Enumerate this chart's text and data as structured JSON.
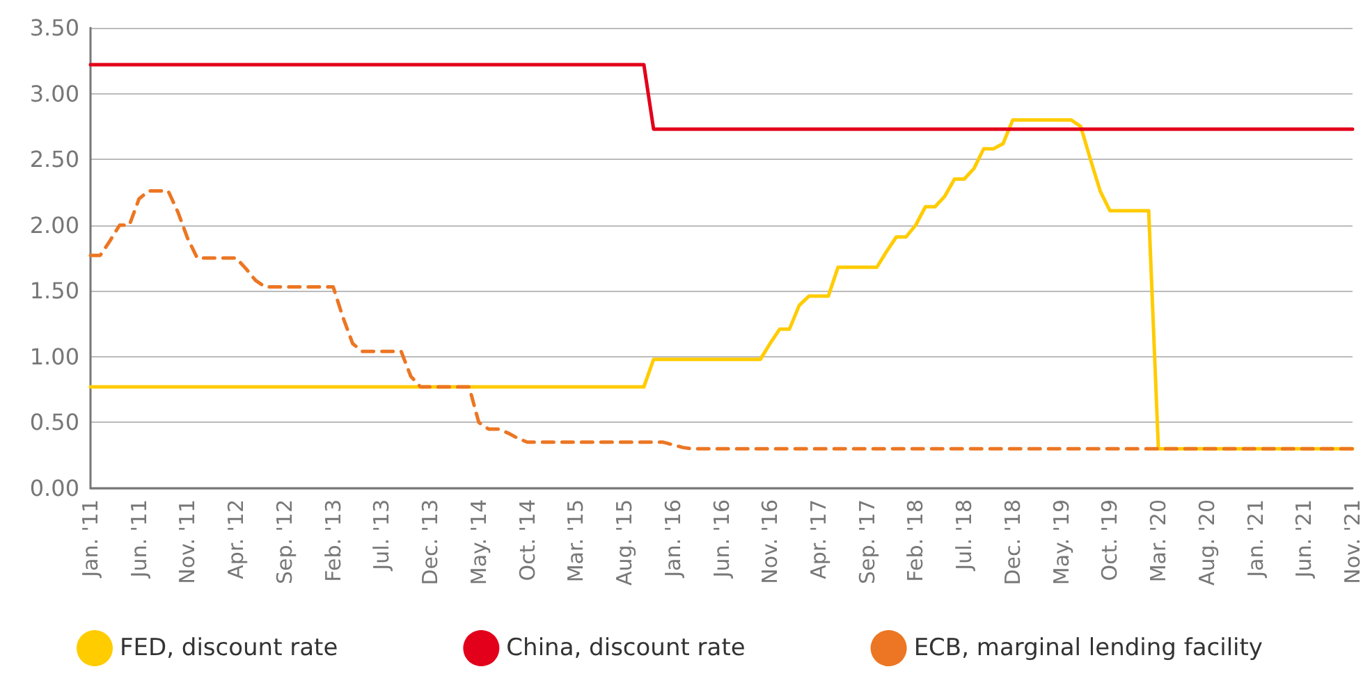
{
  "chart_data": {
    "type": "line",
    "categories": [
      "Jan. '11",
      null,
      null,
      null,
      null,
      "Jun. '11",
      null,
      null,
      null,
      null,
      "Nov. '11",
      null,
      null,
      null,
      null,
      "Apr. '12",
      null,
      null,
      null,
      null,
      "Sep. '12",
      null,
      null,
      null,
      null,
      "Feb. '13",
      null,
      null,
      null,
      null,
      "Jul. '13",
      null,
      null,
      null,
      null,
      "Dec. '13",
      null,
      null,
      null,
      null,
      "May. '14",
      null,
      null,
      null,
      null,
      "Oct. '14",
      null,
      null,
      null,
      null,
      "Mar. '15",
      null,
      null,
      null,
      null,
      "Aug. '15",
      null,
      null,
      null,
      null,
      "Jan. '16",
      null,
      null,
      null,
      null,
      "Jun. '16",
      null,
      null,
      null,
      null,
      "Nov. '16",
      null,
      null,
      null,
      null,
      "Apr. '17",
      null,
      null,
      null,
      null,
      "Sep. '17",
      null,
      null,
      null,
      null,
      "Feb. '18",
      null,
      null,
      null,
      null,
      "Jul. '18",
      null,
      null,
      null,
      null,
      "Dec. '18",
      null,
      null,
      null,
      null,
      "May. '19",
      null,
      null,
      null,
      null,
      "Oct. '19",
      null,
      null,
      null,
      null,
      "Mar. '20",
      null,
      null,
      null,
      null,
      "Aug. '20",
      null,
      null,
      null,
      null,
      "Jan. '21",
      null,
      null,
      null,
      null,
      "Jun. '21",
      null,
      null,
      null,
      null,
      "Nov. '21"
    ],
    "series": [
      {
        "name": "FED, discount rate",
        "color": "#ffcc00",
        "line_style": "solid",
        "values": [
          0.77,
          0.77,
          0.77,
          0.77,
          0.77,
          0.77,
          0.77,
          0.77,
          0.77,
          0.77,
          0.77,
          0.77,
          0.77,
          0.77,
          0.77,
          0.77,
          0.77,
          0.77,
          0.77,
          0.77,
          0.77,
          0.77,
          0.77,
          0.77,
          0.77,
          0.77,
          0.77,
          0.77,
          0.77,
          0.77,
          0.77,
          0.77,
          0.77,
          0.77,
          0.77,
          0.77,
          0.77,
          0.77,
          0.77,
          0.77,
          0.77,
          0.77,
          0.77,
          0.77,
          0.77,
          0.77,
          0.77,
          0.77,
          0.77,
          0.77,
          0.77,
          0.77,
          0.77,
          0.77,
          0.77,
          0.77,
          0.77,
          0.77,
          0.98,
          0.98,
          0.98,
          0.98,
          0.98,
          0.98,
          0.98,
          0.98,
          0.98,
          0.98,
          0.98,
          0.98,
          1.1,
          1.21,
          1.21,
          1.39,
          1.46,
          1.46,
          1.46,
          1.68,
          1.68,
          1.68,
          1.68,
          1.68,
          1.8,
          1.91,
          1.91,
          2.0,
          2.14,
          2.14,
          2.22,
          2.35,
          2.35,
          2.43,
          2.58,
          2.58,
          2.62,
          2.8,
          2.8,
          2.8,
          2.8,
          2.8,
          2.8,
          2.8,
          2.75,
          2.5,
          2.26,
          2.11,
          2.11,
          2.11,
          2.11,
          2.11,
          0.3,
          0.3,
          0.3,
          0.3,
          0.3,
          0.3,
          0.3,
          0.3,
          0.3,
          0.3,
          0.3,
          0.3,
          0.3,
          0.3,
          0.3,
          0.3,
          0.3,
          0.3,
          0.3,
          0.3,
          0.3
        ]
      },
      {
        "name": "China, discount rate",
        "color": "#e2001a",
        "line_style": "solid",
        "values": [
          3.22,
          3.22,
          3.22,
          3.22,
          3.22,
          3.22,
          3.22,
          3.22,
          3.22,
          3.22,
          3.22,
          3.22,
          3.22,
          3.22,
          3.22,
          3.22,
          3.22,
          3.22,
          3.22,
          3.22,
          3.22,
          3.22,
          3.22,
          3.22,
          3.22,
          3.22,
          3.22,
          3.22,
          3.22,
          3.22,
          3.22,
          3.22,
          3.22,
          3.22,
          3.22,
          3.22,
          3.22,
          3.22,
          3.22,
          3.22,
          3.22,
          3.22,
          3.22,
          3.22,
          3.22,
          3.22,
          3.22,
          3.22,
          3.22,
          3.22,
          3.22,
          3.22,
          3.22,
          3.22,
          3.22,
          3.22,
          3.22,
          3.22,
          2.73,
          2.73,
          2.73,
          2.73,
          2.73,
          2.73,
          2.73,
          2.73,
          2.73,
          2.73,
          2.73,
          2.73,
          2.73,
          2.73,
          2.73,
          2.73,
          2.73,
          2.73,
          2.73,
          2.73,
          2.73,
          2.73,
          2.73,
          2.73,
          2.73,
          2.73,
          2.73,
          2.73,
          2.73,
          2.73,
          2.73,
          2.73,
          2.73,
          2.73,
          2.73,
          2.73,
          2.73,
          2.73,
          2.73,
          2.73,
          2.73,
          2.73,
          2.73,
          2.73,
          2.73,
          2.73,
          2.73,
          2.73,
          2.73,
          2.73,
          2.73,
          2.73,
          2.73,
          2.73,
          2.73,
          2.73,
          2.73,
          2.73,
          2.73,
          2.73,
          2.73,
          2.73,
          2.73,
          2.73,
          2.73,
          2.73,
          2.73,
          2.73,
          2.73,
          2.73,
          2.73,
          2.73,
          2.73
        ]
      },
      {
        "name": "ECB, marginal lending facility",
        "color": "#ec7623",
        "line_style": "dashed",
        "values": [
          1.77,
          1.77,
          1.88,
          2.0,
          2.0,
          2.2,
          2.26,
          2.26,
          2.26,
          2.1,
          1.9,
          1.75,
          1.75,
          1.75,
          1.75,
          1.75,
          1.67,
          1.58,
          1.53,
          1.53,
          1.53,
          1.53,
          1.53,
          1.53,
          1.53,
          1.53,
          1.3,
          1.1,
          1.04,
          1.04,
          1.04,
          1.04,
          1.04,
          0.85,
          0.77,
          0.77,
          0.77,
          0.77,
          0.77,
          0.77,
          0.5,
          0.45,
          0.45,
          0.42,
          0.38,
          0.35,
          0.35,
          0.35,
          0.35,
          0.35,
          0.35,
          0.35,
          0.35,
          0.35,
          0.35,
          0.35,
          0.35,
          0.35,
          0.35,
          0.35,
          0.33,
          0.31,
          0.3,
          0.3,
          0.3,
          0.3,
          0.3,
          0.3,
          0.3,
          0.3,
          0.3,
          0.3,
          0.3,
          0.3,
          0.3,
          0.3,
          0.3,
          0.3,
          0.3,
          0.3,
          0.3,
          0.3,
          0.3,
          0.3,
          0.3,
          0.3,
          0.3,
          0.3,
          0.3,
          0.3,
          0.3,
          0.3,
          0.3,
          0.3,
          0.3,
          0.3,
          0.3,
          0.3,
          0.3,
          0.3,
          0.3,
          0.3,
          0.3,
          0.3,
          0.3,
          0.3,
          0.3,
          0.3,
          0.3,
          0.3,
          0.3,
          0.3,
          0.3,
          0.3,
          0.3,
          0.3,
          0.3,
          0.3,
          0.3,
          0.3,
          0.3,
          0.3,
          0.3,
          0.3,
          0.3,
          0.3,
          0.3,
          0.3,
          0.3,
          0.3,
          0.3
        ]
      }
    ],
    "ylim": [
      0,
      3.5
    ],
    "yticks": [
      {
        "value": 0,
        "label": "0.00"
      },
      {
        "value": 0.5,
        "label": "0.50"
      },
      {
        "value": 1,
        "label": "1.00"
      },
      {
        "value": 1.5,
        "label": "1.50"
      },
      {
        "value": 2,
        "label": "2.00"
      },
      {
        "value": 2.5,
        "label": "2.50"
      },
      {
        "value": 3,
        "label": "3.00"
      },
      {
        "value": 3.5,
        "label": "3.50"
      }
    ],
    "grid": "y",
    "legend": "bottom left",
    "marker": "none"
  }
}
